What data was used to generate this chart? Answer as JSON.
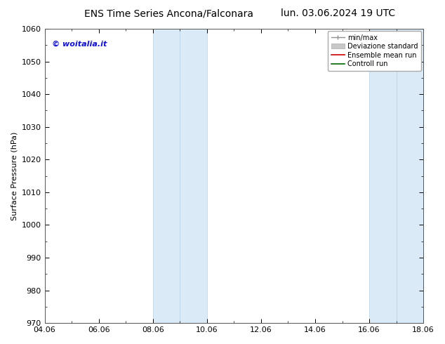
{
  "title_left": "ENS Time Series Ancona/Falconara",
  "title_right": "lun. 03.06.2024 19 UTC",
  "ylabel": "Surface Pressure (hPa)",
  "ylim": [
    970,
    1060
  ],
  "yticks": [
    970,
    980,
    990,
    1000,
    1010,
    1020,
    1030,
    1040,
    1050,
    1060
  ],
  "xlim": [
    0,
    14
  ],
  "xtick_labels": [
    "04.06",
    "06.06",
    "08.06",
    "10.06",
    "12.06",
    "14.06",
    "16.06",
    "18.06"
  ],
  "xtick_positions": [
    0,
    2,
    4,
    6,
    8,
    10,
    12,
    14
  ],
  "shaded_bands": [
    {
      "x_start": 4,
      "x_end": 5
    },
    {
      "x_start": 5,
      "x_end": 6
    },
    {
      "x_start": 12,
      "x_end": 13
    },
    {
      "x_start": 13,
      "x_end": 14
    }
  ],
  "band_color": "#daeaf6",
  "band_alpha": 1.0,
  "band_edgecolor": "#b8d4ea",
  "watermark": "© woitalia.it",
  "watermark_color": "#1010dd",
  "legend_items": [
    {
      "label": "min/max",
      "color": "#909090"
    },
    {
      "label": "Deviazione standard",
      "color": "#c8c8c8"
    },
    {
      "label": "Ensemble mean run",
      "color": "#cc0000"
    },
    {
      "label": "Controll run",
      "color": "#006600"
    }
  ],
  "bg_color": "#ffffff",
  "spine_color": "#555555",
  "title_fontsize": 10,
  "ylabel_fontsize": 8,
  "tick_fontsize": 8,
  "watermark_fontsize": 8,
  "legend_fontsize": 7
}
